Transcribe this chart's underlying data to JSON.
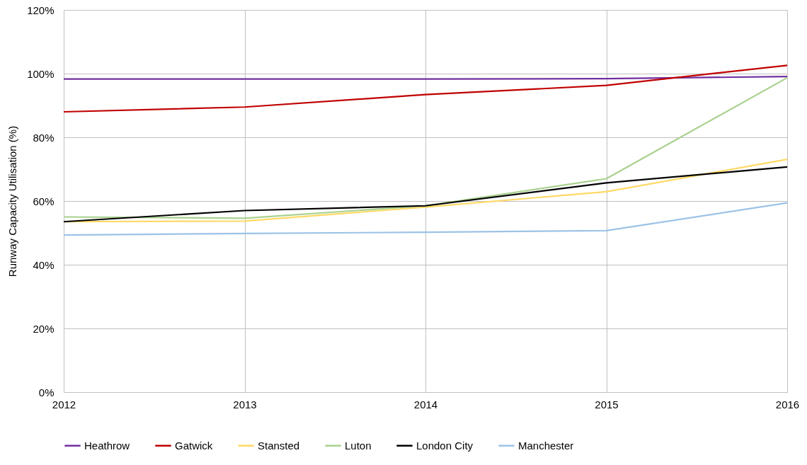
{
  "chart_data": {
    "type": "line",
    "ylabel": "Runway Capacity Utilisation (%)",
    "x": [
      2012,
      2013,
      2014,
      2015,
      2016
    ],
    "xlim": [
      2012,
      2016
    ],
    "xticks": [
      2012,
      2013,
      2014,
      2015,
      2016
    ],
    "ylim": [
      0,
      120
    ],
    "yticks": [
      {
        "value": 0,
        "label": "0%"
      },
      {
        "value": 20,
        "label": "20%"
      },
      {
        "value": 40,
        "label": "40%"
      },
      {
        "value": 60,
        "label": "60%"
      },
      {
        "value": 80,
        "label": "80%"
      },
      {
        "value": 100,
        "label": "100%"
      },
      {
        "value": 120,
        "label": "120%"
      }
    ],
    "grid": true,
    "legend": "bottom",
    "marker": "none",
    "line_style": "solid",
    "series": [
      {
        "name": "Heathrow",
        "color": "#7030a0",
        "values": [
          98.3,
          98.3,
          98.3,
          98.4,
          99.1
        ]
      },
      {
        "name": "Gatwick",
        "color": "#c00000",
        "values": [
          88.0,
          89.5,
          93.4,
          96.3,
          102.6
        ]
      },
      {
        "name": "Stansted",
        "color": "#ffd966",
        "values": [
          53.5,
          53.7,
          58.1,
          62.9,
          73.1
        ]
      },
      {
        "name": "Luton",
        "color": "#a9d18e",
        "values": [
          55.0,
          54.6,
          58.5,
          67.0,
          98.7
        ]
      },
      {
        "name": "London City",
        "color": "#000000",
        "values": [
          53.5,
          57.0,
          58.5,
          65.7,
          70.7
        ]
      },
      {
        "name": "Manchester",
        "color": "#9dc3e6",
        "values": [
          49.3,
          49.8,
          50.2,
          50.7,
          59.4
        ]
      }
    ]
  }
}
